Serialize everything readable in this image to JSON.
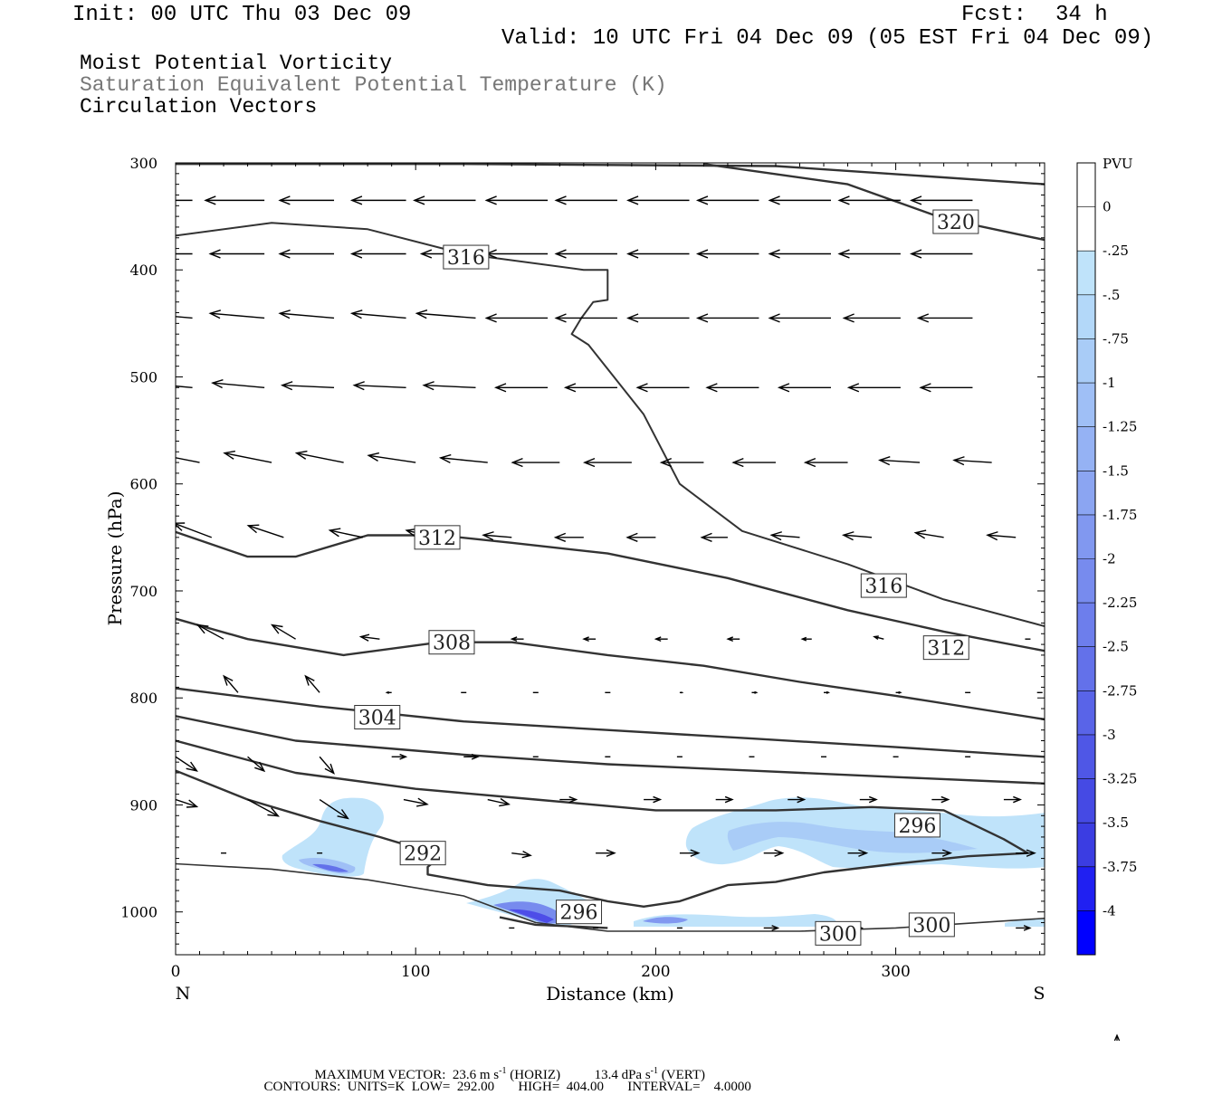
{
  "header": {
    "init": "Init: 00 UTC Thu 03 Dec 09",
    "fcst_label": "Fcst:",
    "fcst_hours": "34 h",
    "valid": "Valid: 10 UTC Fri 04 Dec 09 (05 EST Fri 04 Dec 09)"
  },
  "fields": [
    "Moist Potential Vorticity",
    "Saturation Equivalent Potential Temperature (K)",
    "Circulation Vectors"
  ],
  "colors": {
    "field_primary": "#000000",
    "field_secondary": "#777777",
    "contour": "#333333",
    "shade_light": "#bfe3fa",
    "shade_mid": "#a5c8f5",
    "shade_deep": "#4d4de8"
  },
  "chart_data": {
    "type": "cross-section",
    "xlabel": "Distance (km)",
    "ylabel": "Pressure (hPa)",
    "xlim": [
      0,
      362
    ],
    "ylim": [
      1040,
      300
    ],
    "x_ticks": [
      0,
      100,
      200,
      300
    ],
    "y_ticks": [
      300,
      400,
      500,
      600,
      700,
      800,
      900,
      1000
    ],
    "end_labels": {
      "left": "N",
      "right": "S"
    },
    "colorbar": {
      "unit": "PVU",
      "labels": [
        "0",
        "-.25",
        "-.5",
        "-.75",
        "-1",
        "-1.25",
        "-1.5",
        "-1.75",
        "-2",
        "-2.25",
        "-2.5",
        "-2.75",
        "-3",
        "-3.25",
        "-3.5",
        "-3.75",
        "-4"
      ],
      "colors": [
        "#ffffff",
        "#ffffff",
        "#bfe3fa",
        "#b3d8f9",
        "#a9ccf7",
        "#9fbff6",
        "#95b2f4",
        "#8ba5f2",
        "#8198f0",
        "#778bee",
        "#6d7eec",
        "#6371ea",
        "#5964e8",
        "#4f57e6",
        "#454ae4",
        "#3b3de2",
        "#2020f2",
        "#0000ff"
      ]
    },
    "contour_labels": [
      {
        "text": "320",
        "x": 325,
        "p": 355
      },
      {
        "text": "316",
        "x": 121,
        "p": 388
      },
      {
        "text": "312",
        "x": 109,
        "p": 650
      },
      {
        "text": "316",
        "x": 295,
        "p": 695
      },
      {
        "text": "308",
        "x": 115,
        "p": 748
      },
      {
        "text": "312",
        "x": 321,
        "p": 753
      },
      {
        "text": "304",
        "x": 84,
        "p": 818
      },
      {
        "text": "296",
        "x": 309,
        "p": 919
      },
      {
        "text": "292",
        "x": 103,
        "p": 945
      },
      {
        "text": "296",
        "x": 168,
        "p": 1000
      },
      {
        "text": "300",
        "x": 276,
        "p": 1020
      },
      {
        "text": "300",
        "x": 315,
        "p": 1012
      }
    ],
    "contours": [
      [
        [
          0,
          301
        ],
        [
          120,
          301
        ],
        [
          250,
          303
        ],
        [
          362,
          320
        ]
      ],
      [
        [
          0,
          368
        ],
        [
          40,
          356
        ],
        [
          80,
          362
        ],
        [
          120,
          385
        ],
        [
          170,
          400
        ],
        [
          180,
          400
        ],
        [
          180,
          428
        ],
        [
          174,
          430
        ],
        [
          169,
          445
        ],
        [
          165,
          460
        ],
        [
          172,
          470
        ],
        [
          195,
          535
        ],
        [
          210,
          600
        ],
        [
          236,
          644
        ],
        [
          280,
          675
        ],
        [
          320,
          708
        ],
        [
          362,
          733
        ]
      ],
      [
        [
          220,
          301
        ],
        [
          280,
          320
        ],
        [
          320,
          352
        ],
        [
          362,
          372
        ]
      ],
      [
        [
          0,
          645
        ],
        [
          30,
          668
        ],
        [
          50,
          668
        ],
        [
          80,
          648
        ],
        [
          110,
          648
        ],
        [
          140,
          655
        ],
        [
          180,
          665
        ],
        [
          230,
          688
        ],
        [
          280,
          718
        ],
        [
          320,
          738
        ],
        [
          362,
          756
        ]
      ],
      [
        [
          0,
          726
        ],
        [
          30,
          745
        ],
        [
          70,
          760
        ],
        [
          110,
          748
        ],
        [
          140,
          748
        ],
        [
          180,
          760
        ],
        [
          220,
          770
        ],
        [
          260,
          785
        ],
        [
          300,
          798
        ],
        [
          362,
          820
        ]
      ],
      [
        [
          0,
          791
        ],
        [
          60,
          808
        ],
        [
          120,
          822
        ],
        [
          180,
          830
        ],
        [
          240,
          838
        ],
        [
          300,
          846
        ],
        [
          362,
          855
        ]
      ],
      [
        [
          0,
          817
        ],
        [
          50,
          840
        ],
        [
          120,
          853
        ],
        [
          180,
          862
        ],
        [
          240,
          868
        ],
        [
          300,
          874
        ],
        [
          362,
          880
        ]
      ],
      [
        [
          0,
          840
        ],
        [
          50,
          870
        ],
        [
          100,
          885
        ],
        [
          150,
          895
        ],
        [
          200,
          905
        ],
        [
          250,
          905
        ],
        [
          290,
          902
        ],
        [
          320,
          905
        ],
        [
          345,
          932
        ],
        [
          355,
          945
        ],
        [
          330,
          948
        ],
        [
          300,
          955
        ],
        [
          270,
          963
        ],
        [
          250,
          972
        ],
        [
          230,
          975
        ],
        [
          210,
          990
        ],
        [
          195,
          995
        ],
        [
          180,
          990
        ],
        [
          160,
          980
        ],
        [
          130,
          975
        ],
        [
          105,
          965
        ],
        [
          105,
          958
        ],
        [
          112,
          945
        ],
        [
          100,
          940
        ],
        [
          85,
          930
        ],
        [
          60,
          915
        ],
        [
          30,
          895
        ],
        [
          0,
          868
        ]
      ],
      [
        [
          0,
          955
        ],
        [
          40,
          960
        ],
        [
          80,
          970
        ],
        [
          120,
          985
        ],
        [
          150,
          1010
        ],
        [
          180,
          1018
        ],
        [
          260,
          1018
        ],
        [
          300,
          1015
        ],
        [
          362,
          1006
        ]
      ],
      [
        [
          135,
          1005
        ],
        [
          150,
          1012
        ],
        [
          180,
          1015
        ]
      ]
    ],
    "vector_levels": [
      {
        "p": 335,
        "vectors": [
          [
            7,
            -25,
            0
          ],
          [
            37,
            -25,
            0
          ],
          [
            66,
            -23,
            0
          ],
          [
            96,
            -23,
            0
          ],
          [
            125,
            -26,
            0
          ],
          [
            155,
            -26,
            0
          ],
          [
            184,
            -26,
            0
          ],
          [
            214,
            -26,
            0
          ],
          [
            243,
            -26,
            0
          ],
          [
            273,
            -26,
            0
          ],
          [
            302,
            -26,
            0
          ],
          [
            332,
            -26,
            0
          ]
        ]
      },
      {
        "p": 385,
        "vectors": [
          [
            7,
            -23,
            0
          ],
          [
            37,
            -23,
            0
          ],
          [
            66,
            -23,
            0
          ],
          [
            96,
            -23,
            0
          ],
          [
            125,
            -23,
            0
          ],
          [
            155,
            -26,
            0
          ],
          [
            184,
            -26,
            0
          ],
          [
            214,
            -26,
            0
          ],
          [
            243,
            -26,
            0
          ],
          [
            273,
            -26,
            0
          ],
          [
            302,
            -26,
            0
          ],
          [
            332,
            -26,
            0
          ]
        ]
      },
      {
        "p": 445,
        "vectors": [
          [
            7,
            -23,
            -2
          ],
          [
            37,
            -23,
            -2
          ],
          [
            66,
            -23,
            -2
          ],
          [
            96,
            -23,
            -2
          ],
          [
            125,
            -25,
            -2
          ],
          [
            155,
            -26,
            0
          ],
          [
            184,
            -26,
            0
          ],
          [
            214,
            -26,
            0
          ],
          [
            243,
            -26,
            0
          ],
          [
            273,
            -26,
            0
          ],
          [
            302,
            -24,
            0
          ],
          [
            332,
            -23,
            0
          ]
        ]
      },
      {
        "p": 510,
        "vectors": [
          [
            7,
            -22,
            -2
          ],
          [
            37,
            -22,
            -2
          ],
          [
            66,
            -22,
            -1
          ],
          [
            96,
            -22,
            -1
          ],
          [
            125,
            -22,
            -1
          ],
          [
            155,
            -22,
            0
          ],
          [
            184,
            -22,
            0
          ],
          [
            214,
            -22,
            0
          ],
          [
            243,
            -22,
            0
          ],
          [
            273,
            -22,
            0
          ],
          [
            302,
            -22,
            0
          ],
          [
            332,
            -22,
            0
          ]
        ]
      },
      {
        "p": 580,
        "vectors": [
          [
            10,
            -20,
            -4
          ],
          [
            40,
            -20,
            -4
          ],
          [
            70,
            -20,
            -4
          ],
          [
            100,
            -20,
            -3
          ],
          [
            130,
            -20,
            -2
          ],
          [
            160,
            -20,
            0
          ],
          [
            190,
            -20,
            0
          ],
          [
            220,
            -18,
            0
          ],
          [
            250,
            -18,
            0
          ],
          [
            280,
            -18,
            0
          ],
          [
            310,
            -17,
            -1
          ],
          [
            340,
            -16,
            -1
          ]
        ]
      },
      {
        "p": 650,
        "vectors": [
          [
            15,
            -16,
            -6
          ],
          [
            45,
            -15,
            -5
          ],
          [
            78,
            -14,
            -3
          ],
          [
            108,
            -12,
            -3
          ],
          [
            140,
            -12,
            -1
          ],
          [
            170,
            -12,
            0
          ],
          [
            200,
            -12,
            0
          ],
          [
            230,
            -11,
            0
          ],
          [
            260,
            -12,
            -1
          ],
          [
            290,
            -12,
            -1
          ],
          [
            320,
            -12,
            -2
          ],
          [
            350,
            -12,
            -1
          ]
        ]
      },
      {
        "p": 745,
        "vectors": [
          [
            20,
            -11,
            -6
          ],
          [
            50,
            -10,
            -6
          ],
          [
            85,
            -8,
            -1
          ],
          [
            115,
            -6,
            0
          ],
          [
            145,
            -5,
            0
          ],
          [
            175,
            -5,
            0
          ],
          [
            205,
            -5,
            0
          ],
          [
            235,
            -5,
            0
          ],
          [
            265,
            -4,
            0
          ],
          [
            295,
            -4,
            -1
          ],
          [
            325,
            0,
            0
          ],
          [
            355,
            0,
            0
          ]
        ]
      },
      {
        "p": 795,
        "vectors": [
          [
            26,
            -6,
            -7
          ],
          [
            60,
            -6,
            -7
          ],
          [
            90,
            -2,
            0
          ],
          [
            120,
            0,
            0
          ],
          [
            150,
            0,
            0
          ],
          [
            180,
            0,
            0
          ],
          [
            210,
            1,
            0
          ],
          [
            240,
            2,
            0
          ],
          [
            270,
            2,
            0
          ],
          [
            300,
            2,
            0
          ],
          [
            330,
            0,
            0
          ],
          [
            360,
            0,
            0
          ]
        ]
      },
      {
        "p": 855,
        "vectors": [
          [
            0,
            9,
            6
          ],
          [
            30,
            7,
            6
          ],
          [
            60,
            6,
            7
          ],
          [
            90,
            6,
            0
          ],
          [
            120,
            6,
            0
          ],
          [
            150,
            0,
            0
          ],
          [
            180,
            0,
            0
          ],
          [
            210,
            0,
            0
          ],
          [
            240,
            0,
            0
          ],
          [
            270,
            0,
            0
          ],
          [
            300,
            0,
            0
          ],
          [
            330,
            0,
            0
          ]
        ]
      },
      {
        "p": 895,
        "vectors": [
          [
            0,
            9,
            3
          ],
          [
            30,
            13,
            7
          ],
          [
            60,
            12,
            8
          ],
          [
            95,
            10,
            2
          ],
          [
            130,
            9,
            2
          ],
          [
            160,
            7,
            0
          ],
          [
            195,
            7,
            0
          ],
          [
            225,
            7,
            0
          ],
          [
            255,
            7,
            0
          ],
          [
            285,
            7,
            0
          ],
          [
            315,
            7,
            0
          ],
          [
            345,
            7,
            0
          ]
        ]
      },
      {
        "p": 945,
        "vectors": [
          [
            20,
            0,
            0
          ],
          [
            60,
            0,
            0
          ],
          [
            100,
            0,
            0
          ],
          [
            140,
            8,
            1
          ],
          [
            175,
            8,
            0
          ],
          [
            210,
            8,
            0
          ],
          [
            245,
            8,
            0
          ],
          [
            280,
            8,
            0
          ],
          [
            315,
            8,
            0
          ],
          [
            350,
            8,
            0
          ]
        ]
      },
      {
        "p": 1015,
        "vectors": [
          [
            140,
            0,
            0
          ],
          [
            175,
            0,
            0
          ],
          [
            210,
            0,
            0
          ],
          [
            245,
            6,
            0
          ],
          [
            280,
            6,
            0
          ],
          [
            315,
            6,
            0
          ],
          [
            350,
            6,
            0
          ]
        ]
      }
    ],
    "reference_vector": {
      "maximum_vector_label": "MAXIMUM VECTOR:",
      "horiz_value": "23.6 m s",
      "horiz_suffix": " (HORIZ)",
      "vert_value": "13.4 dPa s",
      "vert_suffix": " (VERT)",
      "exponent": "-1"
    },
    "contour_summary": {
      "label": "CONTOURS:",
      "units": "UNITS=K",
      "low_label": "LOW=",
      "low": "292.00",
      "high_label": "HIGH=",
      "high": "404.00",
      "interval_label": "INTERVAL=",
      "interval": "4.0000"
    }
  }
}
